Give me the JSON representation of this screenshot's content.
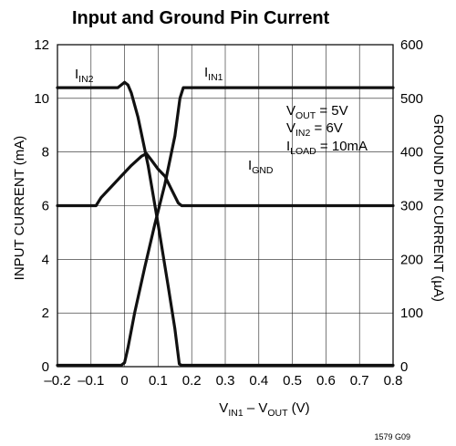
{
  "chart_data": {
    "type": "line",
    "title": "Input and Ground Pin Current",
    "xlabel": {
      "main": "V",
      "sub1": "IN1",
      "mid": " – V",
      "sub2": "OUT",
      "tail": " (V)"
    },
    "ylabel_left": "INPUT CURRENT (mA)",
    "ylabel_right": "GROUND PIN CURRENT (µA)",
    "xlim": [
      -0.2,
      0.8
    ],
    "ylim_left": [
      0,
      12
    ],
    "ylim_right": [
      0,
      600
    ],
    "x_ticks": [
      -0.2,
      -0.1,
      0,
      0.1,
      0.2,
      0.3,
      0.4,
      0.5,
      0.6,
      0.7,
      0.8
    ],
    "x_tick_labels": [
      "–0.2",
      "–0.1",
      "0",
      "0.1",
      "0.2",
      "0.3",
      "0.4",
      "0.5",
      "0.6",
      "0.7",
      "0.8"
    ],
    "y_left_ticks": [
      0,
      2,
      4,
      6,
      8,
      10,
      12
    ],
    "y_left_tick_labels": [
      "0",
      "2",
      "4",
      "6",
      "8",
      "10",
      "12"
    ],
    "y_right_ticks": [
      0,
      100,
      200,
      300,
      400,
      500,
      600
    ],
    "y_right_tick_labels": [
      "0",
      "100",
      "200",
      "300",
      "400",
      "500",
      "600"
    ],
    "grid": true,
    "series": [
      {
        "key": "iin2",
        "label": {
          "main": "I",
          "sub": "IN2"
        },
        "axis": "left",
        "x": [
          -0.2,
          -0.02,
          0.0,
          0.01,
          0.02,
          0.04,
          0.07,
          0.1,
          0.13,
          0.15,
          0.163,
          0.17,
          0.8
        ],
        "y": [
          10.4,
          10.4,
          10.6,
          10.5,
          10.2,
          9.3,
          7.5,
          5.3,
          3.0,
          1.4,
          0.1,
          0.05,
          0.05
        ]
      },
      {
        "key": "iin1",
        "label": {
          "main": "I",
          "sub": "IN1"
        },
        "axis": "left",
        "x": [
          -0.2,
          -0.01,
          0.0,
          0.01,
          0.03,
          0.06,
          0.09,
          0.12,
          0.15,
          0.165,
          0.175,
          0.8
        ],
        "y": [
          0.05,
          0.05,
          0.15,
          0.7,
          2.0,
          3.7,
          5.3,
          6.8,
          8.6,
          10.0,
          10.4,
          10.4
        ]
      },
      {
        "key": "ignd",
        "label": {
          "main": "I",
          "sub": "GND"
        },
        "axis": "right",
        "x": [
          -0.2,
          -0.085,
          -0.07,
          -0.04,
          -0.01,
          0.02,
          0.05,
          0.065,
          0.08,
          0.1,
          0.12,
          0.14,
          0.16,
          0.17,
          0.8
        ],
        "y": [
          300,
          300,
          315,
          335,
          355,
          375,
          392,
          397,
          385,
          368,
          355,
          330,
          305,
          300,
          300
        ]
      }
    ],
    "conditions": [
      {
        "main": "V",
        "sub": "OUT",
        "tail": " = 5V"
      },
      {
        "main": "V",
        "sub": "IN2",
        "tail": " = 6V"
      },
      {
        "main": "I",
        "sub": "LOAD",
        "tail": " = 10mA"
      }
    ],
    "figure_code": "1579 G09"
  }
}
